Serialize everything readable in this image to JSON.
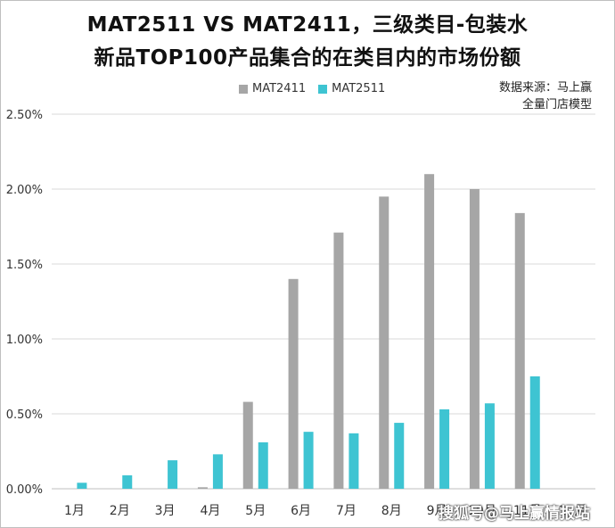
{
  "title_line1": "MAT2511 VS MAT2411，三级类目-包装水",
  "title_line2": "新品TOP100产品集合的在类目内的市场份额",
  "source_line1": "数据来源：马上赢",
  "source_line2": "全量门店模型",
  "watermark": "搜狐号@马上赢情报站",
  "colors": {
    "mat2411": "#a6a6a6",
    "mat2511": "#3ec4d2",
    "grid": "#d9d9d9",
    "axis": "#bfbfbf"
  },
  "chart_data": {
    "type": "bar",
    "categories": [
      "1月",
      "2月",
      "3月",
      "4月",
      "5月",
      "6月",
      "7月",
      "8月",
      "9月",
      "10月",
      "11月",
      "12月"
    ],
    "series": [
      {
        "name": "MAT2411",
        "values": [
          0,
          0,
          0,
          0.0001,
          0.0058,
          0.014,
          0.0171,
          0.0195,
          0.021,
          0.02,
          0.0184,
          0
        ]
      },
      {
        "name": "MAT2511",
        "values": [
          0.0004,
          0.0009,
          0.0019,
          0.0023,
          0.0031,
          0.0038,
          0.0037,
          0.0044,
          0.0053,
          0.0057,
          0.0075,
          0
        ]
      }
    ],
    "ylim": [
      0,
      0.025
    ],
    "yticks": [
      "0.00%",
      "0.50%",
      "1.00%",
      "1.50%",
      "2.00%",
      "2.50%"
    ],
    "grid": true,
    "legend": "top-center"
  }
}
